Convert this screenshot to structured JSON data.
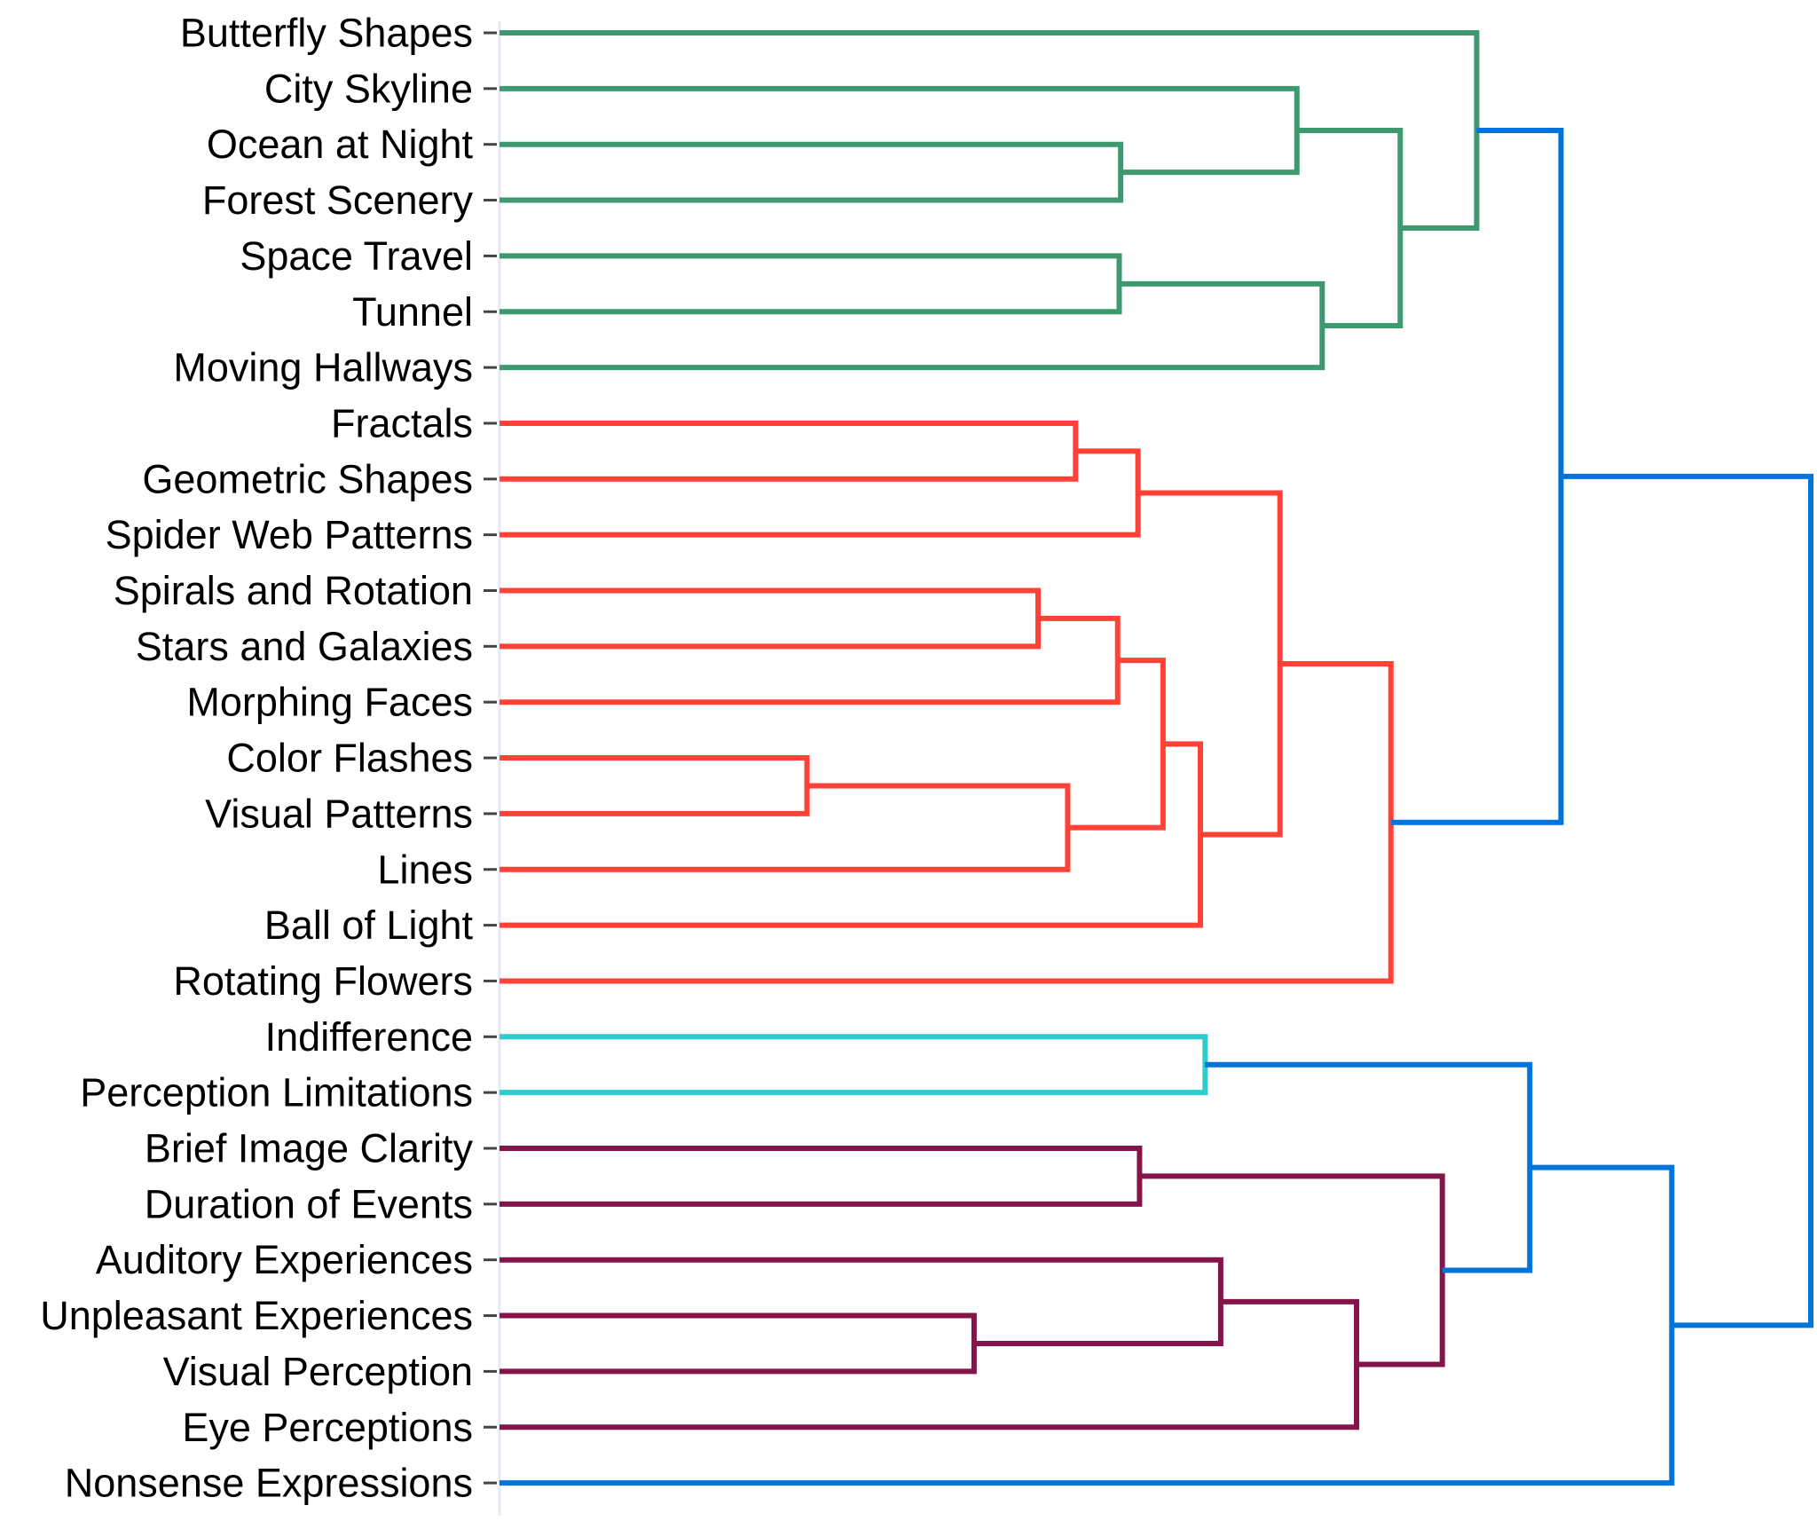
{
  "diagram": {
    "type": "dendrogram",
    "orientation": "horizontal",
    "leaves": [
      "Butterfly Shapes",
      "City Skyline",
      "Ocean at Night",
      "Forest Scenery",
      "Space Travel",
      "Tunnel",
      "Moving Hallways",
      "Fractals",
      "Geometric Shapes",
      "Spider Web Patterns",
      "Spirals and Rotation",
      "Stars and Galaxies",
      "Morphing Faces",
      "Color Flashes",
      "Visual Patterns",
      "Lines",
      "Ball of Light",
      "Rotating Flowers",
      "Indifference",
      "Perception Limitations",
      "Brief Image Clarity",
      "Duration of Events",
      "Auditory Experiences",
      "Unpleasant Experiences",
      "Visual Perception",
      "Eye Perceptions",
      "Nonsense Expressions"
    ],
    "clusters": [
      {
        "name": "green",
        "color": "#3d9970"
      },
      {
        "name": "red",
        "color": "#ff4136"
      },
      {
        "name": "cyan",
        "color": "#2ecccc"
      },
      {
        "name": "purple",
        "color": "#85144b"
      },
      {
        "name": "above-threshold",
        "color": "#0074d9"
      }
    ],
    "merges": [
      {
        "id": "m1",
        "children": [
          "Ocean at Night",
          "Forest Scenery"
        ],
        "height": 0.4737,
        "cluster": "green"
      },
      {
        "id": "m2",
        "children": [
          "City Skyline",
          "m1"
        ],
        "height": 0.6081,
        "cluster": "green"
      },
      {
        "id": "m3",
        "children": [
          "Space Travel",
          "Tunnel"
        ],
        "height": 0.4726,
        "cluster": "green"
      },
      {
        "id": "m4",
        "children": [
          "m3",
          "Moving Hallways"
        ],
        "height": 0.6274,
        "cluster": "green"
      },
      {
        "id": "m5",
        "children": [
          "m2",
          "m4"
        ],
        "height": 0.6869,
        "cluster": "green"
      },
      {
        "id": "m6",
        "children": [
          "Butterfly Shapes",
          "m5"
        ],
        "height": 0.7452,
        "cluster": "green"
      },
      {
        "id": "m7",
        "children": [
          "Fractals",
          "Geometric Shapes"
        ],
        "height": 0.4393,
        "cluster": "red"
      },
      {
        "id": "m8",
        "children": [
          "m7",
          "Spider Web Patterns"
        ],
        "height": 0.4869,
        "cluster": "red"
      },
      {
        "id": "m9",
        "children": [
          "Spirals and Rotation",
          "Stars and Galaxies"
        ],
        "height": 0.4107,
        "cluster": "red"
      },
      {
        "id": "m10",
        "children": [
          "m9",
          "Morphing Faces"
        ],
        "height": 0.4714,
        "cluster": "red"
      },
      {
        "id": "m11",
        "children": [
          "Color Flashes",
          "Visual Patterns"
        ],
        "height": 0.2345,
        "cluster": "red"
      },
      {
        "id": "m12",
        "children": [
          "m11",
          "Lines"
        ],
        "height": 0.4333,
        "cluster": "red"
      },
      {
        "id": "m13",
        "children": [
          "m10",
          "m12"
        ],
        "height": 0.506,
        "cluster": "red"
      },
      {
        "id": "m14",
        "children": [
          "m13",
          "Ball of Light"
        ],
        "height": 0.5345,
        "cluster": "red"
      },
      {
        "id": "m15",
        "children": [
          "m8",
          "m14"
        ],
        "height": 0.5952,
        "cluster": "red"
      },
      {
        "id": "m16",
        "children": [
          "m15",
          "Rotating Flowers"
        ],
        "height": 0.6798,
        "cluster": "red"
      },
      {
        "id": "m17",
        "children": [
          "Indifference",
          "Perception Limitations"
        ],
        "height": 0.5381,
        "cluster": "cyan"
      },
      {
        "id": "m18",
        "children": [
          "Brief Image Clarity",
          "Duration of Events"
        ],
        "height": 0.4881,
        "cluster": "purple"
      },
      {
        "id": "m19",
        "children": [
          "Unpleasant Experiences",
          "Visual Perception"
        ],
        "height": 0.3619,
        "cluster": "purple"
      },
      {
        "id": "m20",
        "children": [
          "Auditory Experiences",
          "m19"
        ],
        "height": 0.55,
        "cluster": "purple"
      },
      {
        "id": "m21",
        "children": [
          "m20",
          "Eye Perceptions"
        ],
        "height": 0.6536,
        "cluster": "purple"
      },
      {
        "id": "m22",
        "children": [
          "m18",
          "m21"
        ],
        "height": 0.719,
        "cluster": "purple"
      },
      {
        "id": "m23",
        "children": [
          "m17",
          "m22"
        ],
        "height": 0.7857,
        "cluster": "above-threshold"
      },
      {
        "id": "m24",
        "children": [
          "m23",
          "Nonsense Expressions"
        ],
        "height": 0.894,
        "cluster": "above-threshold"
      },
      {
        "id": "m25",
        "children": [
          "m6",
          "m16"
        ],
        "height": 0.8095,
        "cluster": "above-threshold"
      },
      {
        "id": "m26",
        "children": [
          "m25",
          "m24"
        ],
        "height": 1.0,
        "cluster": "above-threshold"
      }
    ],
    "leaf_clusters": {
      "Nonsense Expressions": "above-threshold"
    }
  }
}
